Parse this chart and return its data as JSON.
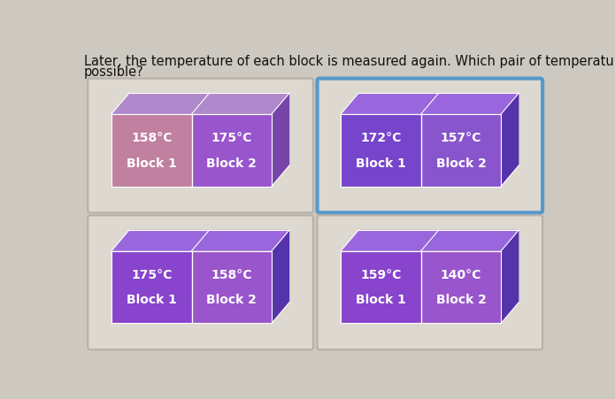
{
  "question_line1": "Later, the temperature of each block is measured again. Which pair of temperatures is",
  "question_line2": "possible?",
  "question_fontsize": 10.5,
  "background_color": "#cdc8c0",
  "panel_bg_color": "#ddd8d0",
  "panels": [
    {
      "id": 0,
      "row": 0,
      "col": 0,
      "selected": false,
      "border_color": "#b8b0a8",
      "border_lw": 1.5,
      "block1_temp": "158°C",
      "block2_temp": "175°C",
      "block1_label": "Block 1",
      "block2_label": "Block 2",
      "front_color1": "#c080a0",
      "front_color2": "#9955cc",
      "top_color": "#b088cc",
      "side_color": "#7744aa",
      "divider_color": "#aa77bb"
    },
    {
      "id": 1,
      "row": 0,
      "col": 1,
      "selected": true,
      "border_color": "#5599cc",
      "border_lw": 3,
      "block1_temp": "172°C",
      "block2_temp": "157°C",
      "block1_label": "Block 1",
      "block2_label": "Block 2",
      "front_color1": "#7744cc",
      "front_color2": "#8855cc",
      "top_color": "#9966dd",
      "side_color": "#5533aa",
      "divider_color": "#7755bb"
    },
    {
      "id": 2,
      "row": 1,
      "col": 0,
      "selected": false,
      "border_color": "#b8b0a8",
      "border_lw": 1.5,
      "block1_temp": "175°C",
      "block2_temp": "158°C",
      "block1_label": "Block 1",
      "block2_label": "Block 2",
      "front_color1": "#8844cc",
      "front_color2": "#9955cc",
      "top_color": "#9966dd",
      "side_color": "#5533aa",
      "divider_color": "#7755bb"
    },
    {
      "id": 3,
      "row": 1,
      "col": 1,
      "selected": false,
      "border_color": "#b8b0a8",
      "border_lw": 1.5,
      "block1_temp": "159°C",
      "block2_temp": "140°C",
      "block1_label": "Block 1",
      "block2_label": "Block 2",
      "front_color1": "#8844cc",
      "front_color2": "#9955cc",
      "top_color": "#9966dd",
      "side_color": "#5533aa",
      "divider_color": "#7755bb"
    }
  ]
}
